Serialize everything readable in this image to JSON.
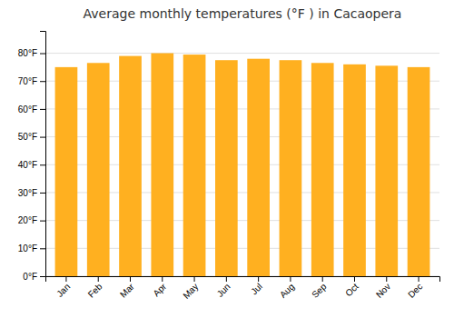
{
  "chart_data": {
    "type": "bar",
    "title": "Average monthly temperatures (°F ) in Cacaopera",
    "categories": [
      "Jan",
      "Feb",
      "Mar",
      "Apr",
      "May",
      "Jun",
      "Jul",
      "Aug",
      "Sep",
      "Oct",
      "Nov",
      "Dec"
    ],
    "values": [
      75,
      76.5,
      79,
      80,
      79.5,
      77.5,
      78,
      77.5,
      76.5,
      76,
      75.5,
      75
    ],
    "color": "#FFB020",
    "ylim": [
      0,
      88
    ],
    "yticks": [
      {
        "value": 0,
        "label": "0°F"
      },
      {
        "value": 10,
        "label": "10°F"
      },
      {
        "value": 20,
        "label": "20°F"
      },
      {
        "value": 30,
        "label": "30°F"
      },
      {
        "value": 40,
        "label": "40°F"
      },
      {
        "value": 50,
        "label": "50°F"
      },
      {
        "value": 60,
        "label": "60°F"
      },
      {
        "value": 70,
        "label": "70°F"
      },
      {
        "value": 80,
        "label": "80°F"
      }
    ],
    "grid": true
  }
}
